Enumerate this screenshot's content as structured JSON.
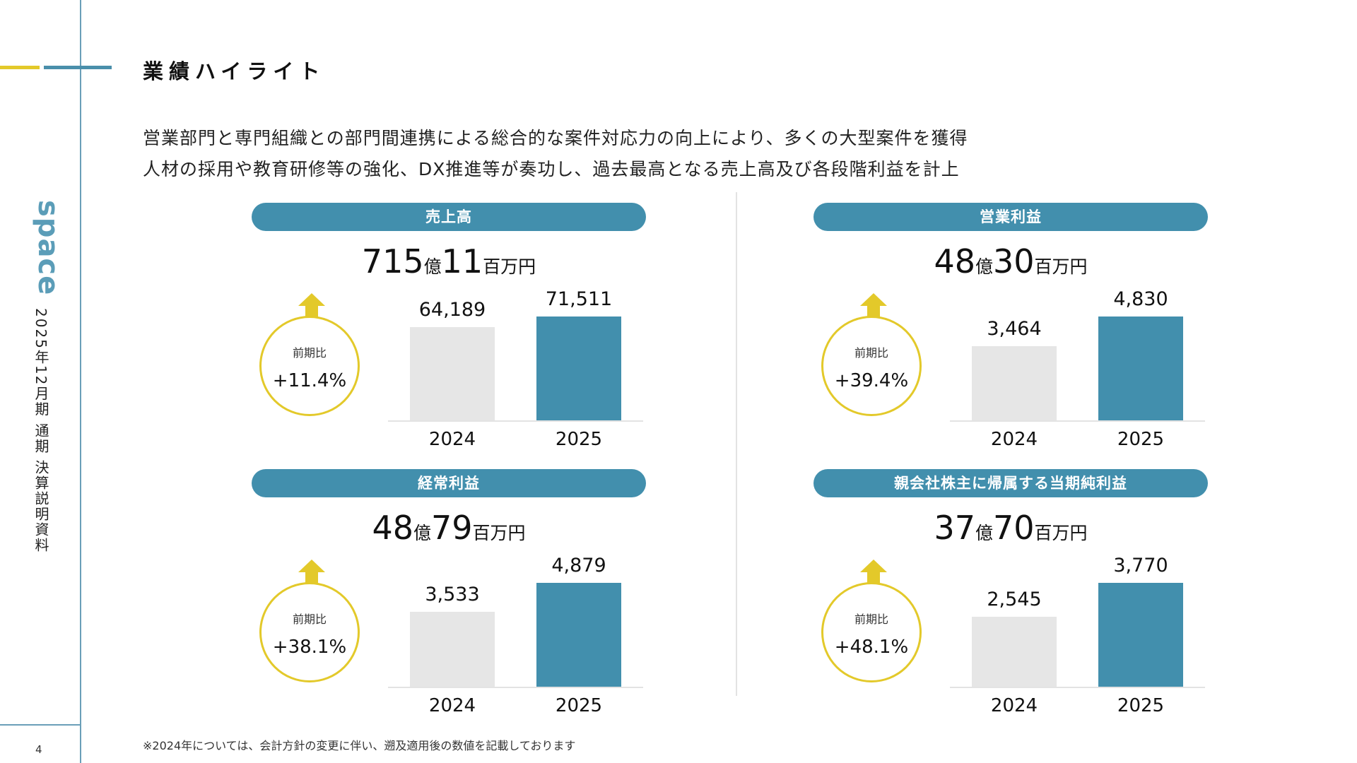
{
  "header": {
    "title": "業績ハイライト",
    "lead_lines": [
      "営業部門と専門組織との部門間連携による総合的な案件対応力の向上により、多くの大型案件を獲得",
      "人材の採用や教育研修等の強化、DX推進等が奏功し、過去最高となる売上高及び各段階利益を計上"
    ]
  },
  "sidebar": {
    "logo": "space",
    "subtitle": "2025年12月期 通期 決算説明資料",
    "page_number": "4"
  },
  "footnote": "※2024年については、会計方針の変更に伴い、遡及適用後の数値を記載しております",
  "colors": {
    "accent": "#428fad",
    "highlight": "#e3c92a",
    "prior_bar": "#e6e6e6",
    "current_bar": "#428fad"
  },
  "chart_data": [
    {
      "type": "bar",
      "title": "売上高",
      "headline": {
        "oku": "715",
        "oku_unit": "億",
        "million": "11",
        "million_unit": "百万円"
      },
      "yoy_label": "前期比",
      "yoy": "+11.4%",
      "categories": [
        "2024",
        "2025"
      ],
      "values": [
        64189,
        71511
      ],
      "value_labels": [
        "64,189",
        "71,511"
      ]
    },
    {
      "type": "bar",
      "title": "営業利益",
      "headline": {
        "oku": "48",
        "oku_unit": "億",
        "million": "30",
        "million_unit": "百万円"
      },
      "yoy_label": "前期比",
      "yoy": "+39.4%",
      "categories": [
        "2024",
        "2025"
      ],
      "values": [
        3464,
        4830
      ],
      "value_labels": [
        "3,464",
        "4,830"
      ]
    },
    {
      "type": "bar",
      "title": "経常利益",
      "headline": {
        "oku": "48",
        "oku_unit": "億",
        "million": "79",
        "million_unit": "百万円"
      },
      "yoy_label": "前期比",
      "yoy": "+38.1%",
      "categories": [
        "2024",
        "2025"
      ],
      "values": [
        3533,
        4879
      ],
      "value_labels": [
        "3,533",
        "4,879"
      ]
    },
    {
      "type": "bar",
      "title": "親会社株主に帰属する当期純利益",
      "headline": {
        "oku": "37",
        "oku_unit": "億",
        "million": "70",
        "million_unit": "百万円"
      },
      "yoy_label": "前期比",
      "yoy": "+48.1%",
      "categories": [
        "2024",
        "2025"
      ],
      "values": [
        2545,
        3770
      ],
      "value_labels": [
        "2,545",
        "3,770"
      ]
    }
  ]
}
